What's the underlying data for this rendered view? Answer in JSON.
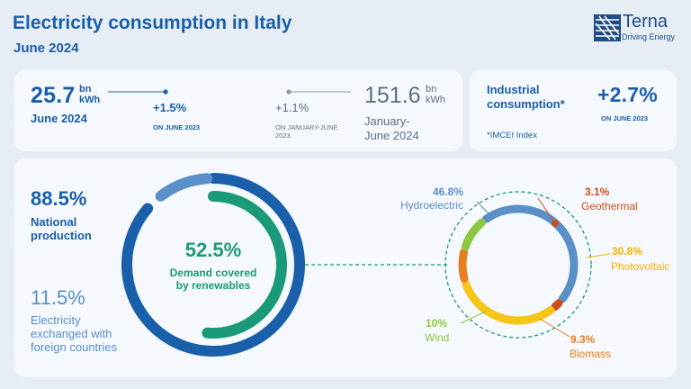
{
  "header": {
    "title": "Electricity consumption in Italy",
    "subtitle": "June 2024"
  },
  "logo": {
    "name": "Terna",
    "tagline": "Driving Energy"
  },
  "monthly": {
    "value": "25.7",
    "unit_line1": "bn",
    "unit_line2": "kWh",
    "period": "June 2024",
    "change": "+1.5%",
    "change_ref": "ON JUNE 2023"
  },
  "ytd": {
    "value": "151.6",
    "unit_line1": "bn",
    "unit_line2": "kWh",
    "period_line1": "January-",
    "period_line2": "June 2024",
    "change": "+1.1%",
    "change_ref_line1": "ON JANUARY-JUNE",
    "change_ref_line2": "2023"
  },
  "industrial": {
    "label_line1": "Industrial",
    "label_line2": "consumption*",
    "change": "+2.7%",
    "change_ref": "ON JUNE 2023",
    "note": "*IMCEI Index"
  },
  "production": {
    "national_pct": "88.5%",
    "national_label_line1": "National",
    "national_label_line2": "production",
    "foreign_pct": "11.5%",
    "foreign_label_line1": "Electricity",
    "foreign_label_line2": "exchanged with",
    "foreign_label_line3": "foreign countries",
    "national_share": 88.5,
    "foreign_share": 11.5
  },
  "renewables": {
    "pct": "52.5%",
    "label_line1": "Demand covered",
    "label_line2": "by renewables",
    "share": 52.5
  },
  "sources": [
    {
      "name": "Hydroelectric",
      "pct": "46.8%",
      "value": 46.8,
      "color": "#5b8fc8"
    },
    {
      "name": "Geothermal",
      "pct": "3.1%",
      "value": 3.1,
      "color": "#c9501c"
    },
    {
      "name": "Photovoltaic",
      "pct": "30.8%",
      "value": 30.8,
      "color": "#f5c518"
    },
    {
      "name": "Biomass",
      "pct": "9.3%",
      "value": 9.3,
      "color": "#e67e22"
    },
    {
      "name": "Wind",
      "pct": "10%",
      "value": 10,
      "color": "#8dc63f"
    }
  ],
  "colors": {
    "primary": "#1a5faa",
    "renewable": "#1a9a78",
    "light_blue": "#5b8fc8",
    "background": "#e6edf5"
  }
}
